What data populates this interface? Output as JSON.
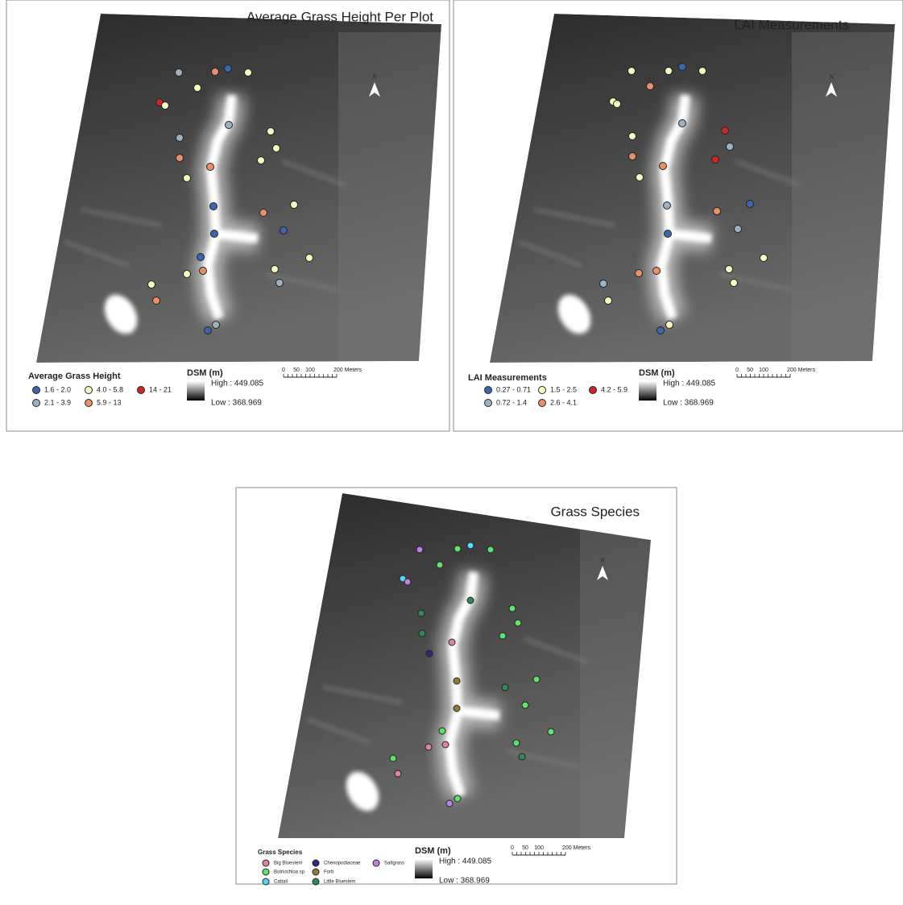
{
  "panels": [
    {
      "title": "Average Grass Height Per Plot",
      "legend": {
        "title": "Average Grass Height",
        "items": [
          {
            "label": "1.6 - 2.0",
            "color": "#3b66ad"
          },
          {
            "label": "2.1 - 3.9",
            "color": "#9cb1c2"
          },
          {
            "label": "4.0 - 5.8",
            "color": "#fbfbc2"
          },
          {
            "label": "5.9 - 13",
            "color": "#ea8f69"
          },
          {
            "label": "14 - 21",
            "color": "#c8282a"
          }
        ]
      },
      "dsm": {
        "title": "DSM (m)",
        "high": "High : 449.085",
        "low": "Low : 368.969"
      },
      "scale": [
        "0",
        "50",
        "100",
        "200 Meters"
      ],
      "north": "N"
    },
    {
      "title": "LAI Measurements",
      "legend": {
        "title": "LAI Measurements",
        "items": [
          {
            "label": "0.27 - 0.71",
            "color": "#3b66ad"
          },
          {
            "label": "0.72 - 1.4",
            "color": "#9cb1c2"
          },
          {
            "label": "1.5 - 2.5",
            "color": "#fbfbc2"
          },
          {
            "label": "2.6 - 4.1",
            "color": "#ea8f69"
          },
          {
            "label": "4.2 - 5.9",
            "color": "#c8282a"
          }
        ]
      },
      "dsm": {
        "title": "DSM (m)",
        "high": "High : 449.085",
        "low": "Low : 368.969"
      },
      "scale": [
        "0",
        "50",
        "100",
        "200 Meters"
      ],
      "north": "N"
    },
    {
      "title": "Grass Species",
      "legend": {
        "title": "Grass Species",
        "items": [
          {
            "label": "Big Bluestem",
            "color": "#e3829a"
          },
          {
            "label": "Botriochloa sp",
            "color": "#60e36c"
          },
          {
            "label": "Cattail",
            "color": "#52d8ef"
          },
          {
            "label": "Chenopodiaceae",
            "color": "#2e2b7c"
          },
          {
            "label": "Forb",
            "color": "#8f7d36"
          },
          {
            "label": "Little Bluestem",
            "color": "#2f8b5b"
          },
          {
            "label": "Saltgrass",
            "color": "#bb82e3"
          }
        ]
      },
      "dsm": {
        "title": "DSM (m)",
        "high": "High : 449.085",
        "low": "Low : 368.969"
      },
      "scale": [
        "0",
        "50",
        "100",
        "200 Meters"
      ],
      "north": "N"
    }
  ]
}
